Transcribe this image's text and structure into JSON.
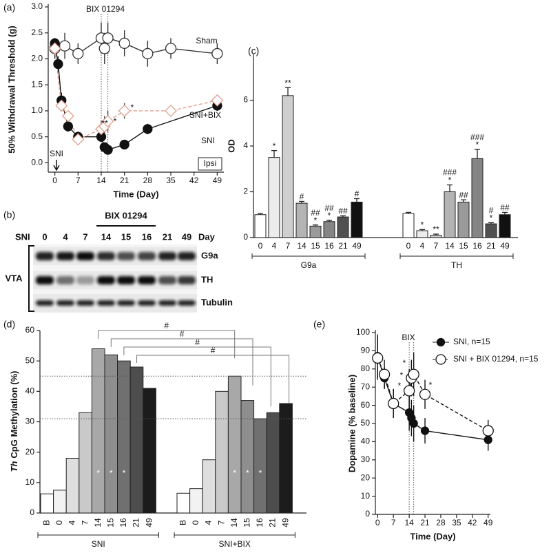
{
  "chart_data": [
    {
      "type": "line",
      "panel": "(a)",
      "xlabel": "Time (Day)",
      "ylabel": "50% Withdrawal Threshold (g)",
      "xlim": [
        -2,
        51
      ],
      "xticks": [
        0,
        7,
        14,
        21,
        28,
        35,
        42,
        49
      ],
      "ylim": [
        -0.18,
        3.0
      ],
      "yticks": [
        {
          "value": 0,
          "label": "0.0"
        },
        0.5,
        {
          "value": 1,
          "label": "1.0"
        },
        1.5,
        {
          "value": 2,
          "label": "2.0"
        },
        2.5,
        {
          "value": 3,
          "label": "3.0"
        }
      ],
      "shaded_window": [
        14,
        16
      ],
      "annotations": [
        "Sham",
        "SNI+BIX",
        "SNI",
        "BIX 01294",
        "SNI",
        "Ipsi",
        "**",
        "*",
        "*"
      ],
      "series": [
        {
          "name": "Sham",
          "color": "#333333",
          "marker": "circle",
          "filled": false,
          "dashed": false,
          "x": [
            0,
            3,
            7,
            14,
            15,
            16,
            21,
            28,
            35,
            49
          ],
          "values": [
            2.2,
            2.25,
            2.1,
            2.4,
            2.2,
            2.4,
            2.3,
            2.1,
            2.2,
            2.1
          ],
          "errors": [
            0.2,
            0.25,
            0.2,
            0.3,
            0.3,
            0.3,
            0.25,
            0.25,
            0.2,
            0.2
          ]
        },
        {
          "name": "SNI",
          "color": "#111111",
          "marker": "circle",
          "filled": true,
          "dashed": false,
          "x": [
            0,
            1,
            2,
            4,
            7,
            14,
            15,
            16,
            21,
            28,
            49
          ],
          "values": [
            2.3,
            1.9,
            1.2,
            0.7,
            0.5,
            0.5,
            0.3,
            0.25,
            0.35,
            0.65,
            1.1
          ],
          "errors": [
            0.1,
            0.15,
            0.15,
            0.1,
            0.1,
            0.1,
            0.08,
            0.08,
            0.08,
            0.1,
            0.1
          ]
        },
        {
          "name": "SNI+BIX",
          "color": "#e2a08c",
          "marker": "diamond",
          "filled": false,
          "dashed": true,
          "x": [
            0,
            2,
            4,
            7,
            14,
            15,
            16,
            21,
            35,
            49
          ],
          "values": [
            2.2,
            1.1,
            0.9,
            0.45,
            0.65,
            0.7,
            0.8,
            1.0,
            1.0,
            1.2
          ],
          "errors": [
            0.1,
            0.1,
            0.1,
            0.1,
            0.15,
            0.2,
            0.2,
            0.15,
            0.1,
            0.1
          ]
        }
      ]
    },
    {
      "type": "grouped-bar",
      "panel": "(c)",
      "ylabel": "OD",
      "ylim": [
        0,
        8
      ],
      "yticks": [
        0,
        2,
        4,
        6
      ],
      "colors": [
        "#ffffff",
        "#ececec",
        "#cfcfcf",
        "#b4b4b4",
        "#9a9a9a",
        "#858585",
        "#505050",
        "#111111"
      ],
      "groups": [
        {
          "name": "G9a",
          "categories": [
            "0",
            "4",
            "7",
            "14",
            "15",
            "16",
            "21",
            "49"
          ],
          "values": [
            1.0,
            3.5,
            6.2,
            1.5,
            0.5,
            0.7,
            0.9,
            1.55
          ],
          "errors": [
            0.05,
            0.3,
            0.35,
            0.08,
            0.05,
            0.05,
            0.05,
            0.15
          ],
          "significance": [
            null,
            [
              "*"
            ],
            [
              "**"
            ],
            [
              "#"
            ],
            [
              "##",
              "*"
            ],
            [
              "##",
              "*"
            ],
            [
              "##"
            ],
            [
              "#"
            ]
          ]
        },
        {
          "name": "TH",
          "categories": [
            "0",
            "4",
            "7",
            "14",
            "15",
            "16",
            "21",
            "49"
          ],
          "values": [
            1.05,
            0.3,
            0.1,
            2.0,
            1.55,
            3.45,
            0.6,
            1.0
          ],
          "errors": [
            0.05,
            0.05,
            0.05,
            0.3,
            0.1,
            0.4,
            0.05,
            0.1
          ],
          "significance": [
            null,
            [
              "*"
            ],
            [
              "**"
            ],
            [
              "###",
              "*"
            ],
            [
              "##"
            ],
            [
              "###",
              "*"
            ],
            [
              "#",
              "*"
            ],
            [
              "##"
            ]
          ]
        }
      ]
    },
    {
      "type": "grouped-bar",
      "panel": "(d)",
      "ylabel_gene": "Th",
      "ylabel": "CpG Methylation (%)",
      "ylim": [
        0,
        60
      ],
      "yticks": [
        0,
        10,
        20,
        30,
        40,
        50,
        60
      ],
      "reference_lines": [
        45,
        31
      ],
      "bracket_labels": [
        "#",
        "#",
        "#",
        "#"
      ],
      "colors": [
        "#ffffff",
        "#f2f2f2",
        "#dedede",
        "#c9c9c9",
        "#a8a8a8",
        "#8e8e8e",
        "#707070",
        "#4d4d4d",
        "#1c1c1c"
      ],
      "groups": [
        {
          "name": "SNI",
          "categories": [
            "B",
            "0",
            "4",
            "7",
            "14",
            "15",
            "16",
            "21",
            "49"
          ],
          "values": [
            6.3,
            7.5,
            18,
            33,
            54,
            52,
            50,
            48,
            41
          ],
          "significance": [
            null,
            null,
            null,
            null,
            "*",
            "*",
            "*",
            null,
            null
          ]
        },
        {
          "name": "SNI+BIX",
          "categories": [
            "B",
            "0",
            "4",
            "7",
            "14",
            "15",
            "16",
            "21",
            "49"
          ],
          "values": [
            6.5,
            8,
            17.5,
            40,
            45,
            37,
            31,
            33,
            36
          ],
          "significance": [
            null,
            null,
            null,
            null,
            "*",
            "*",
            "*",
            null,
            null
          ]
        }
      ]
    },
    {
      "type": "line",
      "panel": "(e)",
      "xlabel": "Time (Day)",
      "ylabel": "Dopamine (% baseline)",
      "xlim": [
        -1,
        50
      ],
      "xticks": [
        0,
        7,
        14,
        21,
        28,
        35,
        42,
        49
      ],
      "ylim": [
        0,
        100
      ],
      "yticks": [
        0,
        10,
        20,
        30,
        40,
        50,
        60,
        70,
        80,
        90,
        100
      ],
      "shaded_window": [
        14,
        16
      ],
      "annotations": [
        "BIX",
        "*",
        "*",
        "*",
        "*"
      ],
      "series": [
        {
          "name": "SNI, n=15",
          "color": "#111111",
          "marker": "circle",
          "filled": true,
          "dashed": false,
          "x": [
            0,
            3,
            7,
            14,
            15,
            16,
            21,
            49
          ],
          "values": [
            87,
            75,
            61,
            56,
            53,
            50,
            46,
            41
          ],
          "errors": [
            12,
            6,
            8,
            10,
            10,
            10,
            7,
            6
          ]
        },
        {
          "name": "SNI + BIX 01294, n=15",
          "color": "#111111",
          "marker": "circle",
          "filled": false,
          "dashed": true,
          "x": [
            0,
            3,
            7,
            14,
            15,
            16,
            21,
            49
          ],
          "values": [
            86,
            77,
            61,
            68,
            75,
            77,
            66,
            46
          ],
          "errors": [
            12,
            8,
            8,
            12,
            10,
            12,
            8,
            6
          ]
        }
      ]
    }
  ],
  "blot": {
    "panel": "(b)",
    "condition": "SNI",
    "lanes": [
      "0",
      "4",
      "7",
      "14",
      "15",
      "16",
      "21",
      "49"
    ],
    "lane_unit": "Day",
    "treatment": "BIX 01294",
    "region": "VTA",
    "rows": [
      "G9a",
      "TH",
      "Tubulin"
    ]
  }
}
